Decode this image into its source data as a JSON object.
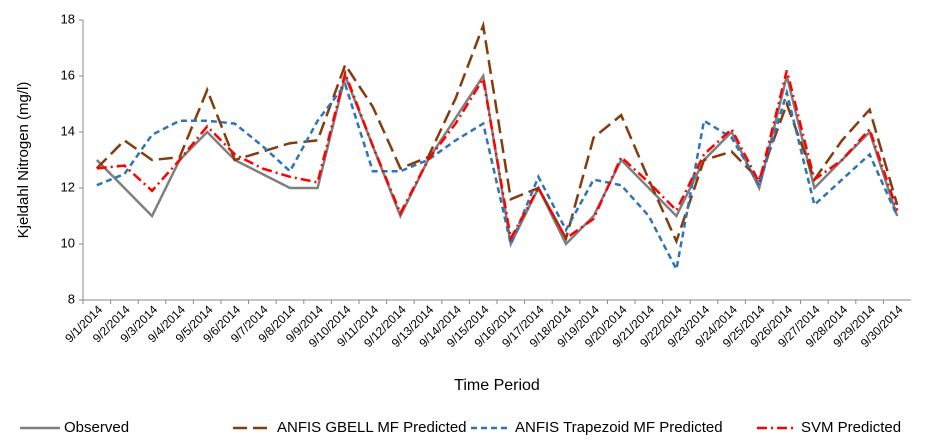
{
  "chart_data": {
    "type": "line",
    "y_label": "Kjeldahl Nitrogen (mg/l)",
    "x_label": "Time Period",
    "categories": [
      "9/1/2014",
      "9/2/2014",
      "9/3/2014",
      "9/4/2014",
      "9/5/2014",
      "9/6/2014",
      "9/7/2014",
      "9/8/2014",
      "9/9/2014",
      "9/10/2014",
      "9/11/2014",
      "9/12/2014",
      "9/13/2014",
      "9/14/2014",
      "9/15/2014",
      "9/16/2014",
      "9/17/2014",
      "9/18/2014",
      "9/19/2014",
      "9/20/2014",
      "9/21/2014",
      "9/22/2014",
      "9/23/2014",
      "9/24/2014",
      "9/25/2014",
      "9/26/2014",
      "9/27/2014",
      "9/28/2014",
      "9/29/2014",
      "9/30/2014"
    ],
    "series": [
      {
        "name": "Observed",
        "color": "#7f7f7f",
        "dash": "solid",
        "values": [
          13,
          12,
          11,
          13,
          14,
          13,
          12.5,
          12,
          12,
          16,
          13.5,
          11,
          13,
          14.5,
          16,
          10,
          12,
          10,
          11,
          13,
          12,
          11,
          13,
          14,
          12,
          16,
          12,
          13,
          14,
          11
        ]
      },
      {
        "name": "ANFIS GBELL MF Predicted",
        "color": "#843c0c",
        "dash": "long-dash",
        "values": [
          12.7,
          13.7,
          13.0,
          13.1,
          15.5,
          13.0,
          13.3,
          13.6,
          13.7,
          16.4,
          14.9,
          12.7,
          13.1,
          15.2,
          17.8,
          11.6,
          12.0,
          10.2,
          13.8,
          14.6,
          12.3,
          10.1,
          13.0,
          13.3,
          12.3,
          15.0,
          12.3,
          13.7,
          14.8,
          11.4
        ]
      },
      {
        "name": "ANFIS Trapezoid MF Predicted",
        "color": "#2e75b6",
        "dash": "dash",
        "values": [
          12.1,
          12.5,
          13.9,
          14.4,
          14.4,
          14.3,
          13.5,
          12.6,
          14.4,
          15.7,
          12.6,
          12.6,
          13.0,
          13.7,
          14.3,
          10.0,
          12.4,
          10.5,
          12.3,
          12.1,
          11.0,
          9.1,
          14.4,
          13.8,
          12.1,
          15.4,
          11.4,
          12.3,
          13.2,
          11.0
        ]
      },
      {
        "name": "SVM Predicted",
        "color": "#ff0000",
        "dash": "dash-dot",
        "values": [
          12.7,
          12.8,
          11.9,
          13.0,
          14.2,
          13.2,
          12.7,
          12.4,
          12.2,
          16.1,
          13.5,
          11.1,
          13.0,
          14.3,
          15.9,
          10.2,
          12.0,
          10.2,
          10.9,
          13.1,
          12.2,
          11.2,
          13.2,
          14.1,
          12.2,
          16.2,
          12.3,
          13.0,
          14.1,
          11.2
        ]
      }
    ],
    "ylim": [
      8,
      18
    ],
    "yticks": [
      8,
      10,
      12,
      14,
      16,
      18
    ],
    "legend": "bottom"
  }
}
